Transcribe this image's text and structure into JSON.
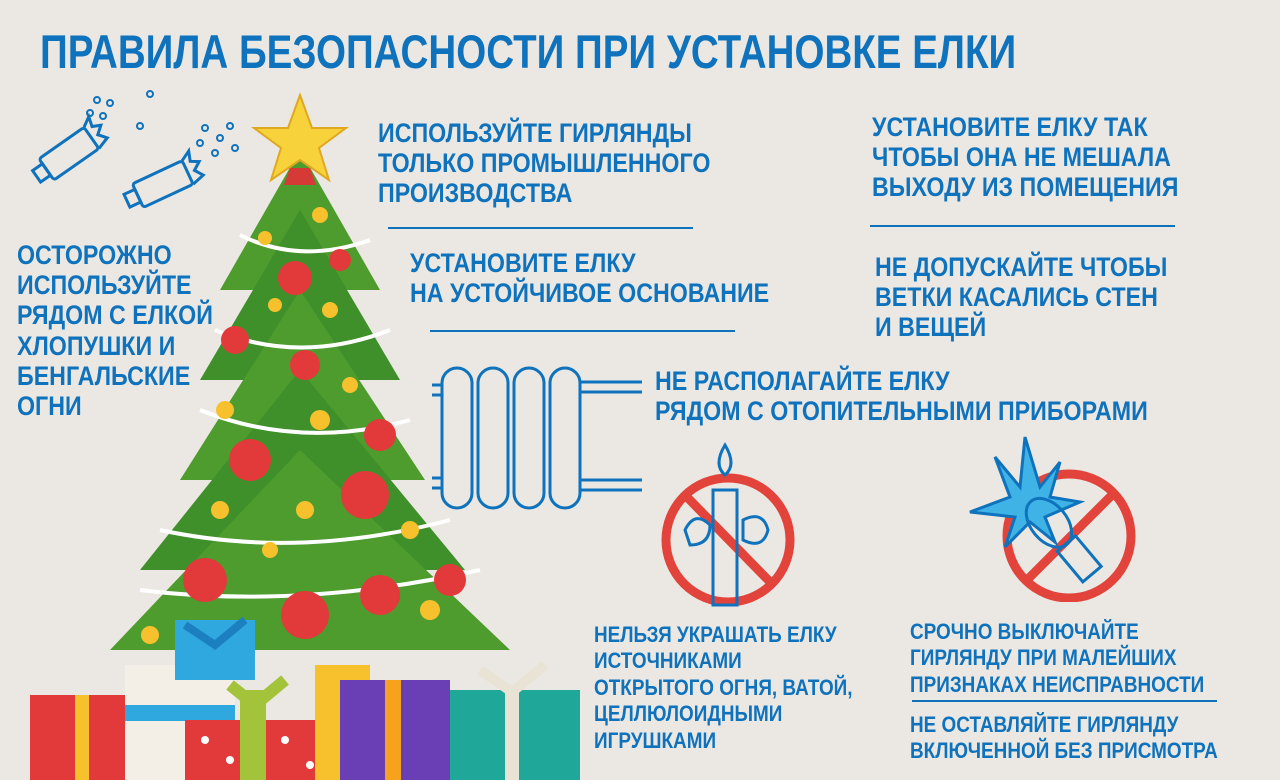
{
  "title": "ПРАВИЛА БЕЗОПАСНОСТИ ПРИ УСТАНОВКЕ ЕЛКИ",
  "rules": {
    "firecrackers": "ОСТОРОЖНО\nИСПОЛЬЗУЙТЕ\nРЯДОМ С ЕЛКОЙ\nХЛОПУШКИ И\nБЕНГАЛЬСКИЕ\nОГНИ",
    "garlands": "ИСПОЛЬЗУЙТЕ ГИРЛЯНДЫ\nТОЛЬКО ПРОМЫШЛЕННОГО\nПРОИЗВОДСТВА",
    "exit": "УСТАНОВИТЕ ЕЛКУ ТАК\nЧТОБЫ ОНА НЕ МЕШАЛА\nВЫХОДУ ИЗ ПОМЕЩЕНИЯ",
    "base": "УСТАНОВИТЕ ЕЛКУ\nНА УСТОЙЧИВОЕ ОСНОВАНИЕ",
    "walls": "НЕ ДОПУСКАЙТЕ ЧТОБЫ\nВЕТКИ КАСАЛИСЬ СТЕН\nИ ВЕЩЕЙ",
    "heaters": "НЕ РАСПОЛАГАЙТЕ ЕЛКУ\nРЯДОМ С ОТОПИТЕЛЬНЫМИ ПРИБОРАМИ",
    "decorations": "НЕЛЬЗЯ УКРАШАТЬ ЕЛКУ\nИСТОЧНИКАМИ\nОТКРЫТОГО ОГНЯ, ВАТОЙ,\nЦЕЛЛЮЛОИДНЫМИ\nИГРУШКАМИ",
    "switch_off": "СРОЧНО ВЫКЛЮЧАЙТЕ\nГИРЛЯНДУ ПРИ МАЛЕЙШИХ\nПРИЗНАКАХ НЕИСПРАВНОСТИ",
    "unattended": "НЕ ОСТАВЛЯЙТЕ ГИРЛЯНДУ\nВКЛЮЧЕННОЙ БЕЗ ПРИСМОТРА"
  },
  "colors": {
    "text": "#0f72bd",
    "background": "#ebe8e3",
    "tree": "#3f8f2a",
    "prohibit": "#e2443c"
  },
  "icons": [
    "firecracker-icon",
    "christmas-tree-illustration",
    "radiator-icon",
    "no-candle-icon",
    "no-broken-bulb-icon",
    "gifts-illustration"
  ]
}
